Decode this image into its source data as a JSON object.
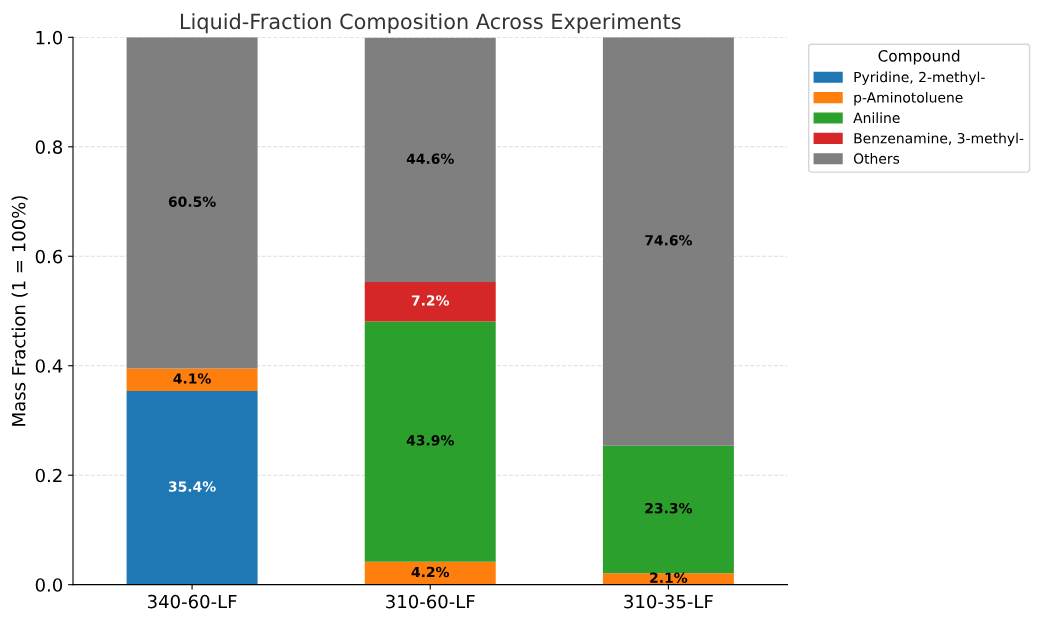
{
  "chart_data": {
    "type": "bar",
    "title": "Liquid-Fraction Composition Across Experiments",
    "ylabel": "Mass Fraction (1 = 100%)",
    "legend_title": "Compound",
    "categories": [
      "340-60-LF",
      "310-60-LF",
      "310-35-LF"
    ],
    "stacked": true,
    "ylim": [
      0,
      1.0
    ],
    "yticks": [
      {
        "value": 0,
        "label": "0.0"
      },
      0.2,
      0.4,
      0.6,
      0.8,
      {
        "value": 1.0,
        "label": "1.0"
      }
    ],
    "grid": true,
    "legend": "top right",
    "series": [
      {
        "name": "Pyridine, 2-methyl-",
        "color": "#1f77b4",
        "values": [
          0.354,
          null,
          null
        ],
        "value_labels": [
          "35.4%",
          null,
          null
        ]
      },
      {
        "name": "p-Aminotoluene",
        "color": "#ff7f0e",
        "values": [
          0.041,
          0.042,
          0.021
        ],
        "value_labels": [
          "4.1%",
          "4.2%",
          "2.1%"
        ]
      },
      {
        "name": "Aniline",
        "color": "#2ca02c",
        "values": [
          null,
          0.439,
          0.233
        ],
        "value_labels": [
          null,
          "43.9%",
          "23.3%"
        ]
      },
      {
        "name": "Benzenamine, 3-methyl-",
        "color": "#d62728",
        "values": [
          null,
          0.072,
          null
        ],
        "value_labels": [
          null,
          "7.2%",
          null
        ]
      },
      {
        "name": "Others",
        "color": "#7f7f7f",
        "values": [
          0.605,
          0.446,
          0.746
        ],
        "value_labels": [
          "60.5%",
          "44.6%",
          "74.6%"
        ]
      }
    ]
  }
}
